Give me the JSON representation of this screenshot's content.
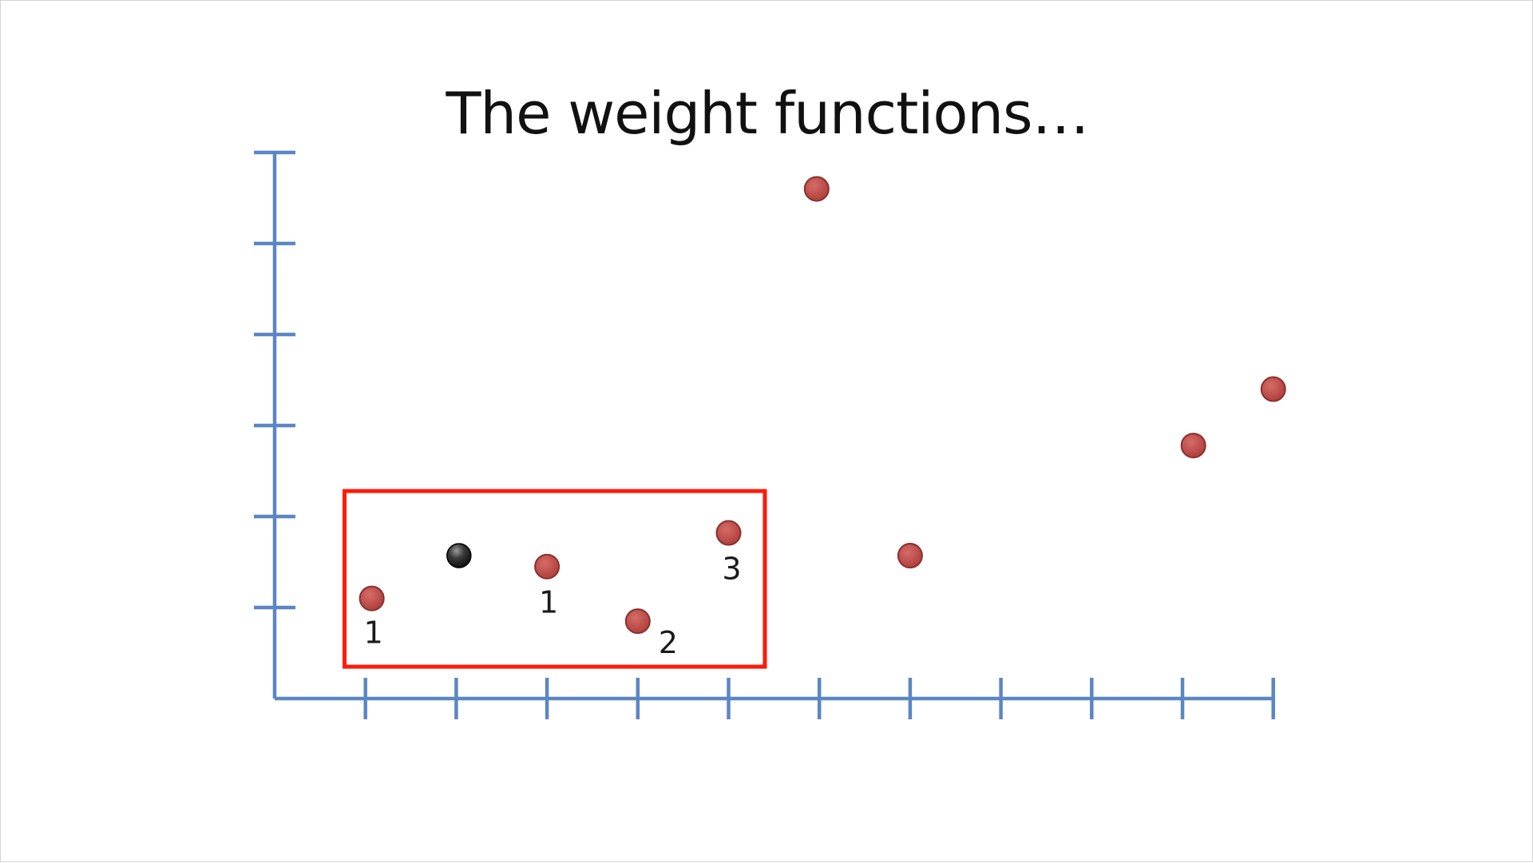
{
  "slide": {
    "title": "The weight functions…"
  },
  "chart_data": {
    "type": "scatter",
    "title": "The weight functions…",
    "xlabel": "",
    "ylabel": "",
    "xlim": [
      0,
      11
    ],
    "ylim": [
      0,
      6
    ],
    "x_ticks": [
      1,
      2,
      3,
      4,
      5,
      6,
      7,
      8,
      9,
      10,
      11
    ],
    "y_ticks": [
      1,
      2,
      3,
      4,
      5,
      6
    ],
    "grid": false,
    "legend": "none",
    "colors": {
      "axis": "#5b86c4",
      "point": "#c0504d",
      "point_stroke": "#8c2f2c",
      "query_point": "#2b2b2b",
      "highlight_box": "#ff1a0a"
    },
    "points": [
      {
        "x": 1.07,
        "y": 1.1,
        "weight": "1"
      },
      {
        "x": 3.0,
        "y": 1.45,
        "weight": "1"
      },
      {
        "x": 4.0,
        "y": 0.85,
        "weight": "2"
      },
      {
        "x": 5.0,
        "y": 1.82,
        "weight": "3"
      },
      {
        "x": 5.97,
        "y": 5.6,
        "weight": ""
      },
      {
        "x": 7.0,
        "y": 1.57,
        "weight": ""
      },
      {
        "x": 10.12,
        "y": 2.78,
        "weight": ""
      },
      {
        "x": 11.0,
        "y": 3.4,
        "weight": ""
      }
    ],
    "query_point": {
      "x": 2.03,
      "y": 1.57
    },
    "highlight_region": {
      "x": [
        0.77,
        5.4
      ],
      "y": [
        0.35,
        2.28
      ]
    }
  }
}
